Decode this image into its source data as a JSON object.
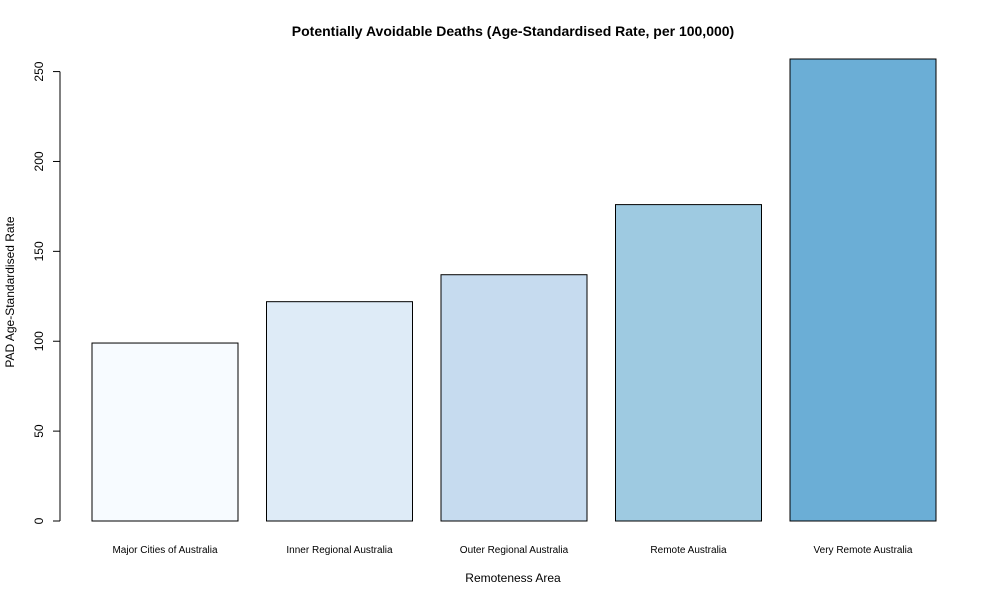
{
  "chart_data": {
    "type": "bar",
    "title": "Potentially Avoidable Deaths (Age-Standardised Rate, per 100,000)",
    "xlabel": "Remoteness Area",
    "ylabel": "PAD Age-Standardised Rate",
    "categories": [
      "Major Cities of Australia",
      "Inner Regional Australia",
      "Outer Regional Australia",
      "Remote Australia",
      "Very Remote Australia"
    ],
    "values": [
      99,
      122,
      137,
      176,
      257
    ],
    "ylim": [
      0,
      257
    ],
    "yticks": [
      0,
      50,
      100,
      150,
      200,
      250
    ],
    "bar_colors": [
      "#F7FBFF",
      "#DEEBF7",
      "#C6DBEF",
      "#9ECAE1",
      "#6BAED6"
    ],
    "grid": false,
    "legend": "none"
  }
}
